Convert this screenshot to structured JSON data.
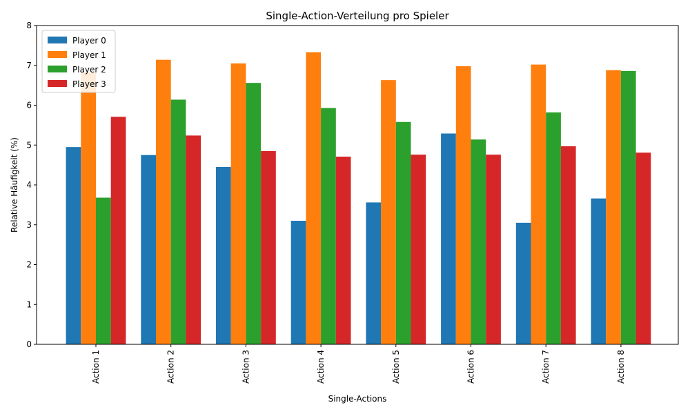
{
  "chart_data": {
    "type": "bar",
    "title": "Single-Action-Verteilung pro Spieler",
    "xlabel": "Single-Actions",
    "ylabel": "Relative Häufigkeit (%)",
    "ylim": [
      0,
      8
    ],
    "yticks": [
      "0",
      "1",
      "2",
      "3",
      "4",
      "5",
      "6",
      "7",
      "8"
    ],
    "grid": false,
    "legend_position": "top-left",
    "categories": [
      "Action 1",
      "Action 2",
      "Action 3",
      "Action 4",
      "Action 5",
      "Action 6",
      "Action 7",
      "Action 8"
    ],
    "series": [
      {
        "name": "Player 0",
        "color": "#1f77b4",
        "values": [
          4.95,
          4.75,
          4.45,
          3.1,
          3.56,
          5.29,
          3.05,
          3.66
        ]
      },
      {
        "name": "Player 1",
        "color": "#ff7f0e",
        "values": [
          6.82,
          7.14,
          7.05,
          7.33,
          6.63,
          6.98,
          7.02,
          6.88
        ]
      },
      {
        "name": "Player 2",
        "color": "#2ca02c",
        "values": [
          3.68,
          6.14,
          6.56,
          5.93,
          5.58,
          5.14,
          5.82,
          6.86
        ]
      },
      {
        "name": "Player 3",
        "color": "#d62728",
        "values": [
          5.71,
          5.24,
          4.85,
          4.71,
          4.76,
          4.76,
          4.97,
          4.81
        ]
      }
    ]
  }
}
